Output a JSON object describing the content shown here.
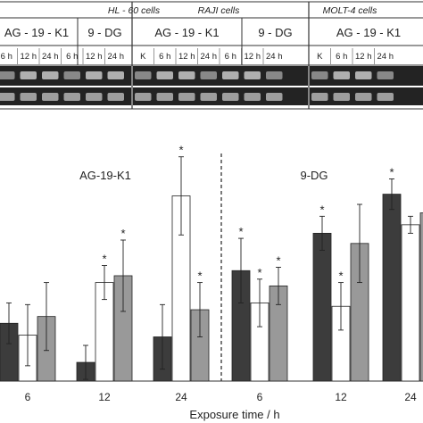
{
  "gel_panel": {
    "groups": [
      {
        "title": "HL - 60 cells",
        "treatments": [
          "AG - 19 - K1",
          "9 - DG"
        ],
        "lanes": [
          "6 h",
          "12 h",
          "24 h",
          "6 h",
          "12 h",
          "24 h"
        ]
      },
      {
        "title": "RAJI cells",
        "treatments": [
          "AG - 19 - K1",
          "9 - DG"
        ],
        "lanes": [
          "K",
          "6 h",
          "12 h",
          "24 h",
          "6 h",
          "12 h",
          "24 h"
        ]
      },
      {
        "title": "MOLT-4 cells",
        "treatments": [
          "AG - 19 - K1"
        ],
        "lanes": [
          "K",
          "6 h",
          "12 h",
          "24 h"
        ]
      }
    ]
  },
  "chart_data": {
    "type": "bar",
    "sections": [
      "AG-19-K1",
      "9-DG"
    ],
    "categories": [
      "6",
      "12",
      "24",
      "6",
      "12",
      "24"
    ],
    "xlabel": "Exposure time / h",
    "series": [
      {
        "color": "#3c3c3c",
        "values": [
          3.4,
          1.1,
          2.6,
          6.5,
          8.7,
          11.0
        ]
      },
      {
        "color": "#ffffff",
        "values": [
          2.7,
          5.8,
          10.9,
          4.6,
          4.4,
          9.2
        ]
      },
      {
        "color": "#999999",
        "values": [
          3.8,
          6.2,
          4.2,
          5.6,
          8.1,
          9.9
        ]
      }
    ],
    "error_bars": [
      [
        1.2,
        1.0,
        1.9,
        1.9,
        1.0,
        0.9
      ],
      [
        1.8,
        1.0,
        2.3,
        1.4,
        1.4,
        0.5
      ],
      [
        2.0,
        2.1,
        1.6,
        1.1,
        2.3,
        1.8
      ]
    ],
    "significant": [
      [
        false,
        false,
        false,
        true,
        true,
        true
      ],
      [
        false,
        true,
        true,
        true,
        true,
        false
      ],
      [
        false,
        true,
        true,
        true,
        false,
        true
      ]
    ]
  }
}
